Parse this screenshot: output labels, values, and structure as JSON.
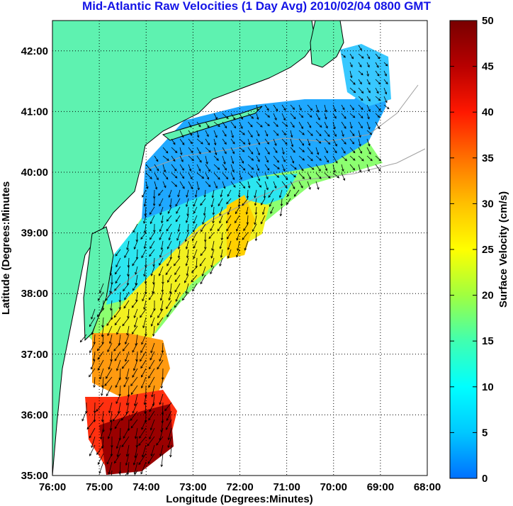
{
  "title": "Mid-Atlantic Raw Velocities (1 Day Avg) 2010/02/04 0800 GMT",
  "map": {
    "xlabel": "Longitude (Degrees:Minutes)",
    "ylabel": "Latitude (Degrees:Minutes",
    "lon_range": [
      -76,
      -68
    ],
    "lat_range": [
      35,
      42.5
    ],
    "lon_ticks": [
      {
        "value": -76,
        "label": "76:00"
      },
      {
        "value": -75,
        "label": "75:00"
      },
      {
        "value": -74,
        "label": "74:00"
      },
      {
        "value": -73,
        "label": "73:00"
      },
      {
        "value": -72,
        "label": "72:00"
      },
      {
        "value": -71,
        "label": "71:00"
      },
      {
        "value": -70,
        "label": "70:00"
      },
      {
        "value": -69,
        "label": "69:00"
      },
      {
        "value": -68,
        "label": "68:00"
      }
    ],
    "lat_ticks": [
      {
        "value": 35,
        "label": "35:00"
      },
      {
        "value": 36,
        "label": "36:00"
      },
      {
        "value": 37,
        "label": "37:00"
      },
      {
        "value": 38,
        "label": "38:00"
      },
      {
        "value": 39,
        "label": "39:00"
      },
      {
        "value": 40,
        "label": "40:00"
      },
      {
        "value": 41,
        "label": "41:00"
      },
      {
        "value": 42,
        "label": "42:00"
      }
    ],
    "grid": "dotted",
    "colors": {
      "land": "#5ef2b0",
      "ocean": "#ffffff",
      "coastline": "#000000",
      "bathymetry": "#a0a0a0",
      "vectors": "#000000"
    }
  },
  "colorbar": {
    "label": "Surface Velocity (cm/s)",
    "min": 0,
    "max": 50,
    "ticks": [
      {
        "value": 0,
        "label": "0"
      },
      {
        "value": 5,
        "label": "5"
      },
      {
        "value": 10,
        "label": "10"
      },
      {
        "value": 15,
        "label": "15"
      },
      {
        "value": 20,
        "label": "20"
      },
      {
        "value": 25,
        "label": "25"
      },
      {
        "value": 30,
        "label": "30"
      },
      {
        "value": 35,
        "label": "35"
      },
      {
        "value": 40,
        "label": "40"
      },
      {
        "value": 45,
        "label": "45"
      },
      {
        "value": 50,
        "label": "50"
      }
    ],
    "colormap": [
      "#0070ff",
      "#00c8ff",
      "#00ffff",
      "#40ffb0",
      "#a0ff40",
      "#ffff00",
      "#ffc000",
      "#ff7000",
      "#ff1800",
      "#b80000",
      "#780000"
    ],
    "colormap_name": "jet"
  }
}
